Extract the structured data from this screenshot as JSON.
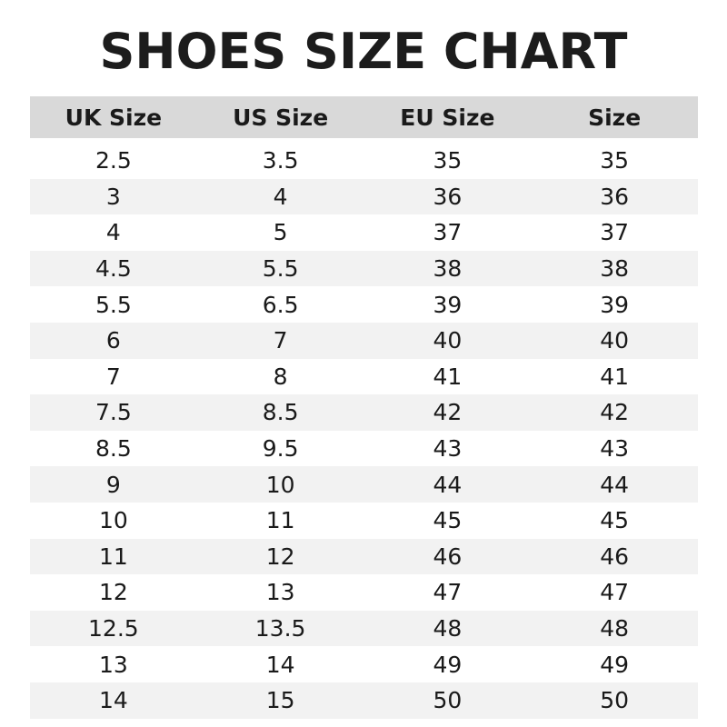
{
  "title": "SHOES SIZE CHART",
  "colors": {
    "header_bg": "#d9d9d9",
    "stripe_bg": "#f2f2f2",
    "text": "#1a1a1a"
  },
  "table": {
    "headers": [
      "UK Size",
      "US Size",
      "EU Size",
      "Size"
    ],
    "rows": [
      [
        "2.5",
        "3.5",
        "35",
        "35"
      ],
      [
        "3",
        "4",
        "36",
        "36"
      ],
      [
        "4",
        "5",
        "37",
        "37"
      ],
      [
        "4.5",
        "5.5",
        "38",
        "38"
      ],
      [
        "5.5",
        "6.5",
        "39",
        "39"
      ],
      [
        "6",
        "7",
        "40",
        "40"
      ],
      [
        "7",
        "8",
        "41",
        "41"
      ],
      [
        "7.5",
        "8.5",
        "42",
        "42"
      ],
      [
        "8.5",
        "9.5",
        "43",
        "43"
      ],
      [
        "9",
        "10",
        "44",
        "44"
      ],
      [
        "10",
        "11",
        "45",
        "45"
      ],
      [
        "11",
        "12",
        "46",
        "46"
      ],
      [
        "12",
        "13",
        "47",
        "47"
      ],
      [
        "12.5",
        "13.5",
        "48",
        "48"
      ],
      [
        "13",
        "14",
        "49",
        "49"
      ],
      [
        "14",
        "15",
        "50",
        "50"
      ]
    ]
  }
}
